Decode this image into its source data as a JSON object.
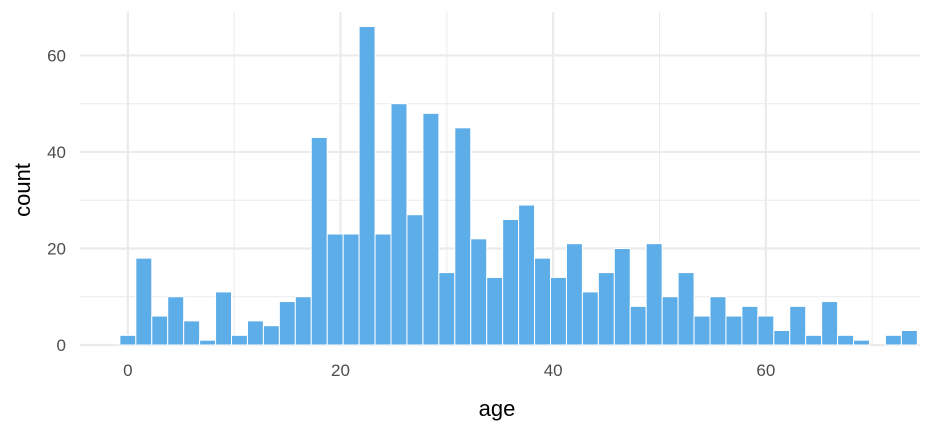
{
  "chart_data": {
    "type": "bar",
    "title": "",
    "xlabel": "age",
    "ylabel": "count",
    "bin_width": 1.5,
    "bin_start": -0.75,
    "xlim": [
      -4.5,
      74.5
    ],
    "ylim": [
      0,
      69
    ],
    "x_ticks": [
      0,
      20,
      40,
      60
    ],
    "y_ticks": [
      0,
      20,
      40,
      60
    ],
    "grid": true,
    "bar_color": "#5DADE8",
    "bar_edge_color": "#ffffff",
    "grid_color": "#ebebeb",
    "counts": [
      2,
      18,
      6,
      10,
      5,
      1,
      11,
      2,
      5,
      4,
      9,
      10,
      43,
      23,
      23,
      66,
      23,
      50,
      27,
      48,
      15,
      45,
      22,
      14,
      26,
      29,
      18,
      14,
      21,
      11,
      15,
      20,
      8,
      21,
      10,
      15,
      6,
      10,
      6,
      8,
      6,
      3,
      8,
      2,
      9,
      2,
      1,
      0,
      2,
      3
    ]
  }
}
